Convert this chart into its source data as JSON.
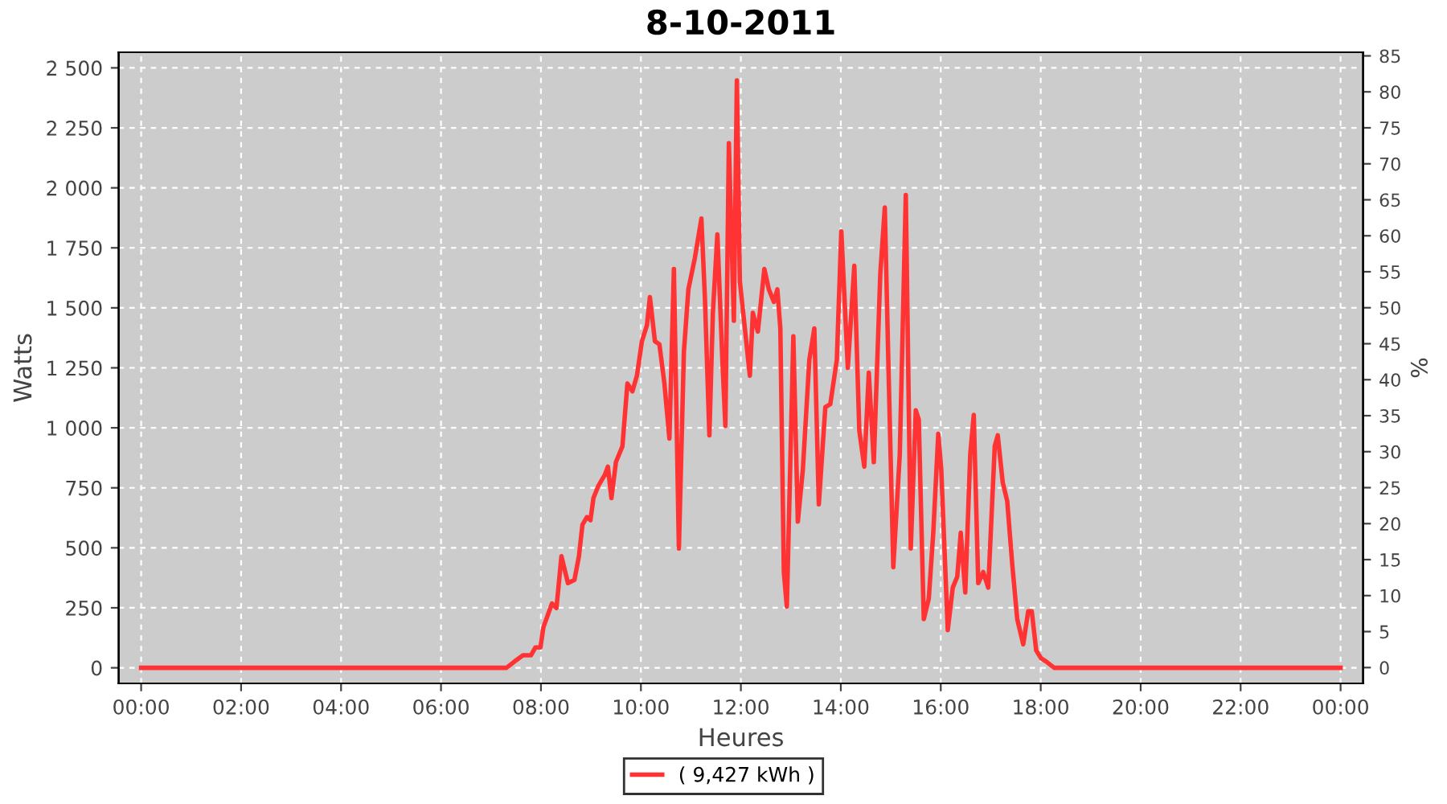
{
  "chart_data": {
    "type": "line",
    "title": "8-10-2011",
    "xlabel": "Heures",
    "ylabel": "Watts",
    "y2label": "%",
    "x": [
      0,
      7.31,
      7.47,
      7.64,
      7.8,
      7.89,
      7.99,
      8.05,
      8.22,
      8.31,
      8.41,
      8.54,
      8.67,
      8.76,
      8.83,
      8.92,
      8.99,
      9.05,
      9.15,
      9.28,
      9.34,
      9.41,
      9.5,
      9.63,
      9.73,
      9.83,
      9.92,
      10.02,
      10.12,
      10.18,
      10.28,
      10.37,
      10.47,
      10.57,
      10.66,
      10.76,
      10.86,
      10.95,
      11.08,
      11.21,
      11.28,
      11.37,
      11.44,
      11.53,
      11.63,
      11.69,
      11.76,
      11.86,
      11.92,
      11.98,
      12.08,
      12.18,
      12.24,
      12.34,
      12.47,
      12.56,
      12.66,
      12.73,
      12.79,
      12.86,
      12.92,
      13.05,
      13.14,
      13.24,
      13.37,
      13.47,
      13.56,
      13.69,
      13.79,
      13.92,
      14.01,
      14.14,
      14.27,
      14.37,
      14.47,
      14.56,
      14.66,
      14.79,
      14.88,
      14.95,
      15.05,
      15.18,
      15.3,
      15.4,
      15.5,
      15.56,
      15.66,
      15.76,
      15.85,
      15.95,
      16.01,
      16.14,
      16.24,
      16.33,
      16.4,
      16.49,
      16.59,
      16.66,
      16.75,
      16.85,
      16.95,
      17.08,
      17.14,
      17.24,
      17.33,
      17.43,
      17.53,
      17.65,
      17.75,
      17.82,
      17.91,
      18.01,
      18.11,
      18.27,
      24
    ],
    "series": [
      {
        "name": "( 9,427 kWh )",
        "color": "#ff3333",
        "values": [
          0,
          0,
          26,
          52,
          52,
          85,
          85,
          170,
          268,
          249,
          465,
          353,
          366,
          465,
          596,
          628,
          615,
          707,
          759,
          805,
          838,
          707,
          857,
          923,
          1185,
          1152,
          1217,
          1361,
          1427,
          1545,
          1361,
          1348,
          1185,
          955,
          1662,
          497,
          1316,
          1577,
          1708,
          1872,
          1545,
          969,
          1479,
          1806,
          1283,
          1008,
          2186,
          1446,
          2448,
          1610,
          1414,
          1217,
          1479,
          1401,
          1662,
          1577,
          1525,
          1577,
          1414,
          399,
          255,
          1381,
          609,
          825,
          1283,
          1414,
          681,
          1086,
          1099,
          1283,
          1819,
          1250,
          1675,
          988,
          838,
          1230,
          857,
          1642,
          1918,
          1283,
          419,
          890,
          1970,
          497,
          1073,
          1034,
          203,
          288,
          563,
          975,
          825,
          157,
          334,
          380,
          563,
          314,
          890,
          1054,
          353,
          399,
          334,
          923,
          969,
          772,
          694,
          432,
          203,
          98,
          236,
          236,
          72,
          39,
          26,
          0,
          0
        ]
      }
    ],
    "xlim": [
      -0.45,
      24.45
    ],
    "xticks": [
      {
        "value": 0,
        "label": "00:00"
      },
      {
        "value": 2,
        "label": "02:00"
      },
      {
        "value": 4,
        "label": "04:00"
      },
      {
        "value": 6,
        "label": "06:00"
      },
      {
        "value": 8,
        "label": "08:00"
      },
      {
        "value": 10,
        "label": "10:00"
      },
      {
        "value": 12,
        "label": "12:00"
      },
      {
        "value": 14,
        "label": "14:00"
      },
      {
        "value": 16,
        "label": "16:00"
      },
      {
        "value": 18,
        "label": "18:00"
      },
      {
        "value": 20,
        "label": "20:00"
      },
      {
        "value": 22,
        "label": "22:00"
      },
      {
        "value": 24,
        "label": "00:00"
      }
    ],
    "ylim": [
      -65,
      2565
    ],
    "yticks": [
      0,
      250,
      500,
      750,
      {
        "value": 1000,
        "label": "1 000"
      },
      {
        "value": 1250,
        "label": "1 250"
      },
      {
        "value": 1500,
        "label": "1 500"
      },
      {
        "value": 1750,
        "label": "1 750"
      },
      {
        "value": 2000,
        "label": "2 000"
      },
      {
        "value": 2250,
        "label": "2 250"
      },
      {
        "value": 2500,
        "label": "2 500"
      }
    ],
    "y2lim": [
      -2.2,
      85.5
    ],
    "y2ticks": [
      0,
      5,
      10,
      15,
      20,
      25,
      30,
      35,
      40,
      45,
      50,
      55,
      60,
      65,
      70,
      75,
      80,
      85
    ],
    "grid": true,
    "legend": "bottom",
    "marker": "none",
    "line_style": "solid"
  }
}
